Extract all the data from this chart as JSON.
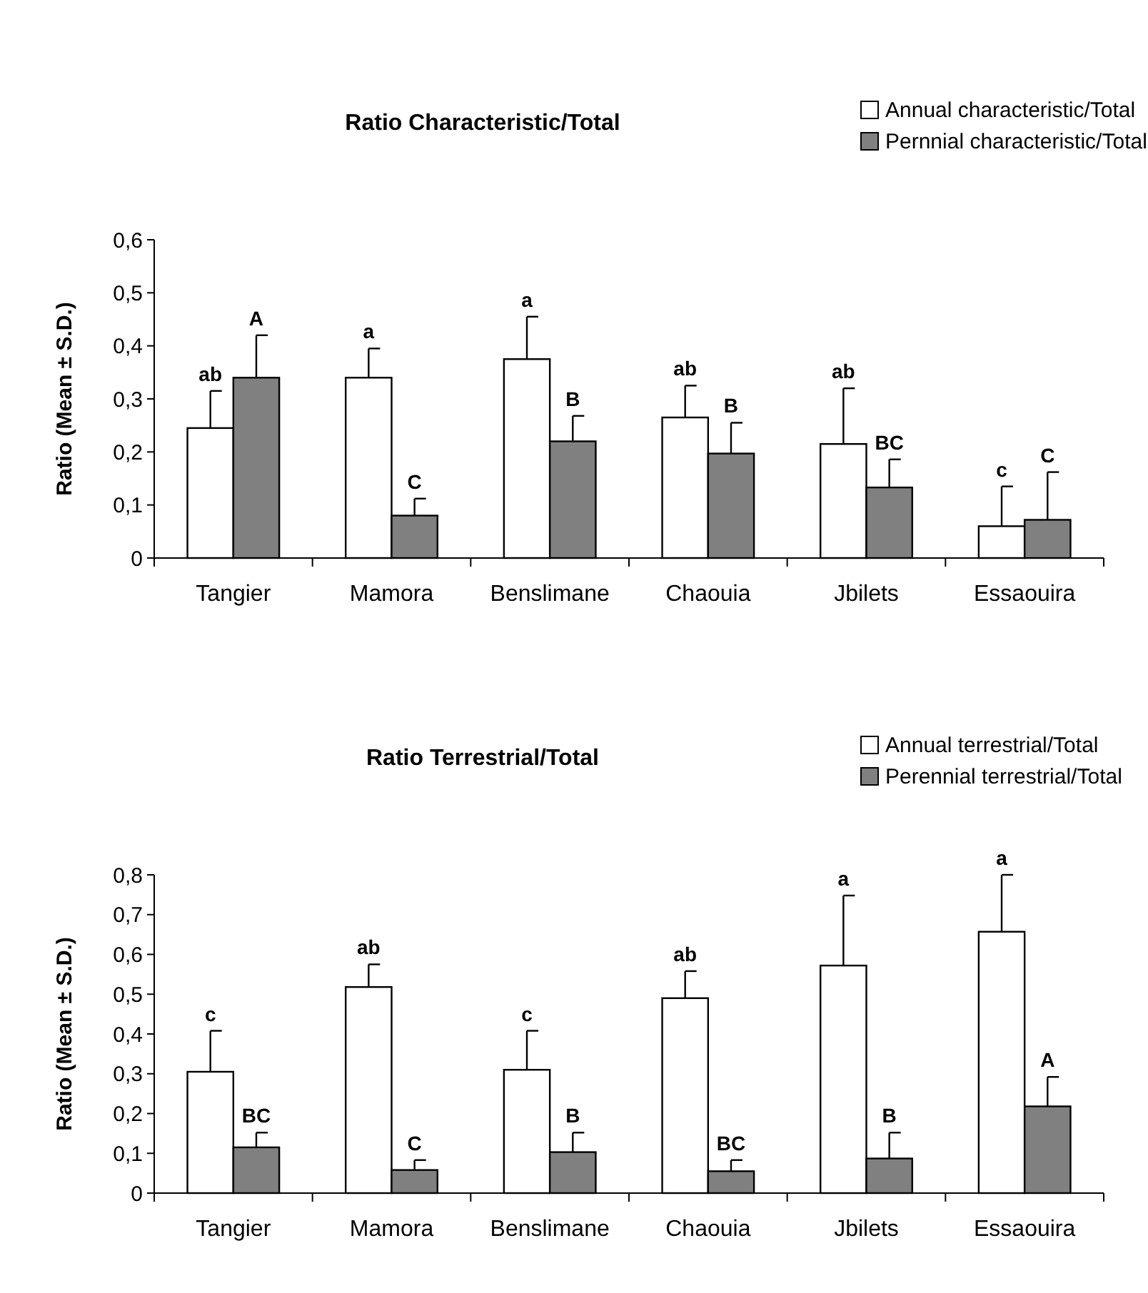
{
  "chart_data": [
    {
      "type": "bar",
      "title": "Ratio Characteristic/Total",
      "ylabel": "Ratio (Mean ± S.D.)",
      "categories": [
        "Tangier",
        "Mamora",
        "Benslimane",
        "Chaouia",
        "Jbilets",
        "Essaouira"
      ],
      "series": [
        {
          "name": "Annual characteristic/Total",
          "color": "#ffffff",
          "values": [
            0.245,
            0.34,
            0.375,
            0.265,
            0.215,
            0.06
          ],
          "errors": [
            [
              0.245,
              0.315
            ],
            [
              0.34,
              0.395
            ],
            [
              0.375,
              0.455
            ],
            [
              0.265,
              0.325
            ],
            [
              0.215,
              0.32
            ],
            [
              0.06,
              0.135
            ]
          ]
        },
        {
          "name": "Pernnial characteristic/Total",
          "color": "#808080",
          "values": [
            0.34,
            0.08,
            0.22,
            0.197,
            0.133,
            0.072
          ],
          "errors": [
            [
              0.34,
              0.42
            ],
            [
              0.08,
              0.112
            ],
            [
              0.22,
              0.268
            ],
            [
              0.197,
              0.255
            ],
            [
              0.133,
              0.186
            ],
            [
              0.072,
              0.162
            ]
          ]
        }
      ],
      "ylim": [
        0,
        0.6
      ],
      "yticks": [
        {
          "value": 0,
          "label": "0"
        },
        {
          "value": 0.1,
          "label": "0,1"
        },
        {
          "value": 0.2,
          "label": "0,2"
        },
        {
          "value": 0.3,
          "label": "0,3"
        },
        {
          "value": 0.4,
          "label": "0,4"
        },
        {
          "value": 0.5,
          "label": "0,5"
        },
        {
          "value": 0.6,
          "label": "0,6"
        }
      ],
      "legend": "top right",
      "grid": false,
      "annotations": [
        "ab",
        "A",
        "a",
        "C",
        "a",
        "B",
        "ab",
        "B",
        "ab",
        "BC",
        "c",
        "C"
      ]
    },
    {
      "type": "bar",
      "title": "Ratio Terrestrial/Total",
      "ylabel": "Ratio (Mean ± S.D.)",
      "categories": [
        "Tangier",
        "Mamora",
        "Benslimane",
        "Chaouia",
        "Jbilets",
        "Essaouira"
      ],
      "series": [
        {
          "name": "Annual terrestrial/Total",
          "color": "#ffffff",
          "values": [
            0.305,
            0.518,
            0.31,
            0.49,
            0.572,
            0.657
          ],
          "errors": [
            [
              0.305,
              0.408
            ],
            [
              0.518,
              0.575
            ],
            [
              0.31,
              0.408
            ],
            [
              0.49,
              0.558
            ],
            [
              0.572,
              0.748
            ],
            [
              0.657,
              0.8
            ]
          ]
        },
        {
          "name": "Perennial terrestrial/Total",
          "color": "#808080",
          "values": [
            0.115,
            0.058,
            0.103,
            0.055,
            0.087,
            0.218
          ],
          "errors": [
            [
              0.115,
              0.152
            ],
            [
              0.058,
              0.083
            ],
            [
              0.103,
              0.152
            ],
            [
              0.055,
              0.083
            ],
            [
              0.087,
              0.152
            ],
            [
              0.218,
              0.292
            ]
          ]
        }
      ],
      "ylim": [
        0,
        0.8
      ],
      "yticks": [
        {
          "value": 0,
          "label": "0"
        },
        {
          "value": 0.1,
          "label": "0,1"
        },
        {
          "value": 0.2,
          "label": "0,2"
        },
        {
          "value": 0.3,
          "label": "0,3"
        },
        {
          "value": 0.4,
          "label": "0,4"
        },
        {
          "value": 0.5,
          "label": "0,5"
        },
        {
          "value": 0.6,
          "label": "0,6"
        },
        {
          "value": 0.7,
          "label": "0,7"
        },
        {
          "value": 0.8,
          "label": "0,8"
        }
      ],
      "legend": "top right",
      "grid": false,
      "annotations": [
        "c",
        "BC",
        "ab",
        "C",
        "c",
        "B",
        "ab",
        "BC",
        "a",
        "B",
        "a",
        "A"
      ]
    }
  ]
}
